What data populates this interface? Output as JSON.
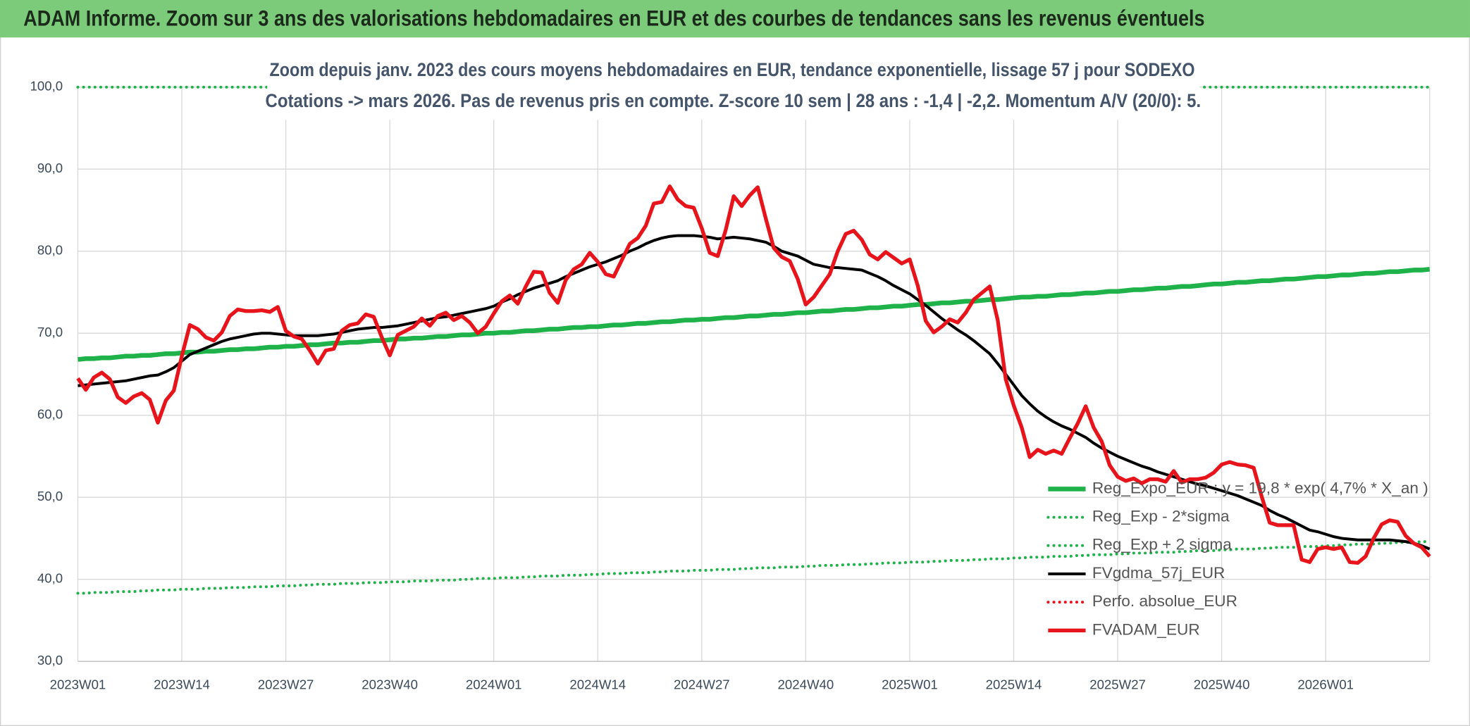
{
  "chart_data": {
    "type": "line",
    "header": "ADAM Informe. Zoom sur 3 ans des valorisations hebdomadaires en EUR et des courbes de tendances sans les revenus éventuels",
    "title": "Zoom depuis janv. 2023 des cours moyens hebdomadaires en EUR, tendance exponentielle, lissage 57 j pour SODEXO",
    "subtitle": "Cotations -> mars 2026. Pas de revenus pris en compte. Z-score 10 sem | 28 ans : -1,4 | -2,2. Momentum A/V (20/0): 5.",
    "grid": true,
    "legend": "lower right",
    "ylim": [
      30,
      100
    ],
    "yticks": [
      {
        "value": 30,
        "label": "30,0"
      },
      {
        "value": 40,
        "label": "40,0"
      },
      {
        "value": 50,
        "label": "50,0"
      },
      {
        "value": 60,
        "label": "60,0"
      },
      {
        "value": 70,
        "label": "70,0"
      },
      {
        "value": 80,
        "label": "80,0"
      },
      {
        "value": 90,
        "label": "90,0"
      },
      {
        "value": 100,
        "label": "100,0"
      }
    ],
    "categories": [
      "2023W01",
      null,
      null,
      null,
      null,
      null,
      null,
      null,
      null,
      null,
      null,
      null,
      null,
      "2023W14",
      null,
      null,
      null,
      null,
      null,
      null,
      null,
      null,
      null,
      null,
      null,
      null,
      "2023W27",
      null,
      null,
      null,
      null,
      null,
      null,
      null,
      null,
      null,
      null,
      null,
      null,
      "2023W40",
      null,
      null,
      null,
      null,
      null,
      null,
      null,
      null,
      null,
      null,
      null,
      null,
      "2024W01",
      null,
      null,
      null,
      null,
      null,
      null,
      null,
      null,
      null,
      null,
      null,
      null,
      "2024W14",
      null,
      null,
      null,
      null,
      null,
      null,
      null,
      null,
      null,
      null,
      null,
      null,
      "2024W27",
      null,
      null,
      null,
      null,
      null,
      null,
      null,
      null,
      null,
      null,
      null,
      null,
      "2024W40",
      null,
      null,
      null,
      null,
      null,
      null,
      null,
      null,
      null,
      null,
      null,
      null,
      "2025W01",
      null,
      null,
      null,
      null,
      null,
      null,
      null,
      null,
      null,
      null,
      null,
      null,
      "2025W14",
      null,
      null,
      null,
      null,
      null,
      null,
      null,
      null,
      null,
      null,
      null,
      null,
      "2025W27",
      null,
      null,
      null,
      null,
      null,
      null,
      null,
      null,
      null,
      null,
      null,
      null,
      "2025W40",
      null,
      null,
      null,
      null,
      null,
      null,
      null,
      null,
      null,
      null,
      null,
      null,
      "2026W01",
      null,
      null,
      null,
      null,
      null,
      null,
      null,
      null,
      null,
      null,
      null,
      null,
      null
    ],
    "series": [
      {
        "name": "Reg_Expo_EUR : y = 19,8 * exp( 4,7% *  X_an )",
        "color": "#1fb24a",
        "style": "solid",
        "width": 5,
        "values": [
          66.8,
          66.9,
          66.9,
          67.0,
          67.0,
          67.1,
          67.2,
          67.2,
          67.3,
          67.3,
          67.4,
          67.5,
          67.5,
          67.6,
          67.7,
          67.7,
          67.8,
          67.8,
          67.9,
          68.0,
          68.0,
          68.1,
          68.1,
          68.2,
          68.3,
          68.3,
          68.4,
          68.4,
          68.5,
          68.6,
          68.6,
          68.7,
          68.8,
          68.8,
          68.9,
          68.9,
          69.0,
          69.1,
          69.1,
          69.2,
          69.3,
          69.3,
          69.4,
          69.4,
          69.5,
          69.6,
          69.6,
          69.7,
          69.8,
          69.8,
          69.9,
          70.0,
          70.0,
          70.1,
          70.1,
          70.2,
          70.3,
          70.3,
          70.4,
          70.5,
          70.5,
          70.6,
          70.7,
          70.7,
          70.8,
          70.8,
          70.9,
          71.0,
          71.0,
          71.1,
          71.2,
          71.2,
          71.3,
          71.4,
          71.4,
          71.5,
          71.6,
          71.6,
          71.7,
          71.7,
          71.8,
          71.9,
          71.9,
          72.0,
          72.1,
          72.1,
          72.2,
          72.3,
          72.3,
          72.4,
          72.5,
          72.5,
          72.6,
          72.7,
          72.7,
          72.8,
          72.9,
          72.9,
          73.0,
          73.1,
          73.1,
          73.2,
          73.3,
          73.3,
          73.4,
          73.5,
          73.5,
          73.6,
          73.7,
          73.7,
          73.8,
          73.9,
          73.9,
          74.0,
          74.1,
          74.1,
          74.2,
          74.3,
          74.4,
          74.4,
          74.5,
          74.5,
          74.6,
          74.7,
          74.7,
          74.8,
          74.9,
          74.9,
          75.0,
          75.1,
          75.1,
          75.2,
          75.3,
          75.3,
          75.4,
          75.5,
          75.5,
          75.6,
          75.7,
          75.7,
          75.8,
          75.9,
          76.0,
          76.0,
          76.1,
          76.2,
          76.2,
          76.3,
          76.4,
          76.4,
          76.5,
          76.6,
          76.6,
          76.7,
          76.8,
          76.9,
          76.9,
          77.0,
          77.1,
          77.1,
          77.2,
          77.3,
          77.3,
          77.4,
          77.5,
          77.5,
          77.6,
          77.7,
          77.7,
          77.8
        ]
      },
      {
        "name": "Reg_Exp - 2*sigma",
        "color": "#1fb24a",
        "style": "dotted",
        "width": 3,
        "values": [
          38.3,
          38.3,
          38.4,
          38.4,
          38.4,
          38.5,
          38.5,
          38.5,
          38.6,
          38.6,
          38.7,
          38.7,
          38.7,
          38.8,
          38.8,
          38.8,
          38.9,
          38.9,
          38.9,
          39.0,
          39.0,
          39.0,
          39.1,
          39.1,
          39.1,
          39.2,
          39.2,
          39.2,
          39.3,
          39.3,
          39.4,
          39.4,
          39.4,
          39.5,
          39.5,
          39.5,
          39.6,
          39.6,
          39.6,
          39.7,
          39.7,
          39.7,
          39.8,
          39.8,
          39.8,
          39.9,
          39.9,
          39.9,
          40.0,
          40.0,
          40.1,
          40.1,
          40.1,
          40.2,
          40.2,
          40.2,
          40.3,
          40.3,
          40.4,
          40.4,
          40.4,
          40.5,
          40.5,
          40.5,
          40.6,
          40.6,
          40.7,
          40.7,
          40.7,
          40.8,
          40.8,
          40.8,
          40.9,
          40.9,
          41.0,
          41.0,
          41.0,
          41.1,
          41.1,
          41.1,
          41.2,
          41.2,
          41.2,
          41.3,
          41.3,
          41.4,
          41.4,
          41.4,
          41.5,
          41.5,
          41.5,
          41.6,
          41.6,
          41.7,
          41.7,
          41.7,
          41.8,
          41.8,
          41.8,
          41.9,
          41.9,
          42.0,
          42.0,
          42.0,
          42.1,
          42.1,
          42.1,
          42.2,
          42.2,
          42.3,
          42.3,
          42.3,
          42.4,
          42.4,
          42.5,
          42.5,
          42.5,
          42.6,
          42.6,
          42.7,
          42.7,
          42.7,
          42.8,
          42.8,
          42.8,
          42.9,
          42.9,
          43.0,
          43.0,
          43.0,
          43.1,
          43.1,
          43.2,
          43.2,
          43.2,
          43.3,
          43.3,
          43.3,
          43.4,
          43.4,
          43.5,
          43.5,
          43.5,
          43.6,
          43.6,
          43.7,
          43.7,
          43.7,
          43.8,
          43.8,
          43.9,
          43.9,
          43.9,
          44.0,
          44.0,
          44.0,
          44.1,
          44.1,
          44.2,
          44.2,
          44.3,
          44.3,
          44.3,
          44.4,
          44.4,
          44.5,
          44.5,
          44.5,
          44.6,
          44.6
        ]
      },
      {
        "name": "Reg_Exp + 2 sigma",
        "color": "#1fb24a",
        "style": "dotted",
        "width": 3,
        "values": [
          100,
          100,
          100,
          100,
          100,
          100,
          100,
          100,
          100,
          100,
          100,
          100,
          100,
          100,
          100,
          100,
          100,
          100,
          100,
          100,
          100,
          100,
          100,
          100,
          100,
          100,
          100,
          100,
          100,
          100,
          100,
          100,
          100,
          100,
          100,
          100,
          100,
          100,
          100,
          100,
          100,
          100,
          100,
          100,
          100,
          100,
          100,
          100,
          100,
          100,
          100,
          100,
          100,
          100,
          100,
          100,
          100,
          100,
          100,
          100,
          100,
          100,
          100,
          100,
          100,
          100,
          100,
          100,
          100,
          100,
          100,
          100,
          100,
          100,
          100,
          100,
          100,
          100,
          100,
          100,
          100,
          100,
          100,
          100,
          100,
          100,
          100,
          100,
          100,
          100,
          100,
          100,
          100,
          100,
          100,
          100,
          100,
          100,
          100,
          100,
          100,
          100,
          100,
          100,
          100,
          100,
          100,
          100,
          100,
          100,
          100,
          100,
          100,
          100,
          100,
          100,
          100,
          100,
          100,
          100,
          100,
          100,
          100,
          100,
          100,
          100,
          100,
          100,
          100,
          100,
          100,
          100,
          100,
          100,
          100,
          100,
          100,
          100,
          100,
          100,
          100,
          100,
          100,
          100,
          100,
          100,
          100,
          100,
          100,
          100,
          100,
          100,
          100,
          100,
          100,
          100,
          100,
          100,
          100,
          100,
          100,
          100,
          100,
          100,
          100,
          100,
          100,
          100,
          100,
          100
        ]
      },
      {
        "name": "FVgdma_57j_EUR",
        "color": "#000000",
        "style": "solid",
        "width": 3,
        "values": [
          63.6,
          63.7,
          63.8,
          63.9,
          64.0,
          64.1,
          64.2,
          64.4,
          64.6,
          64.8,
          64.9,
          65.3,
          65.8,
          66.6,
          67.4,
          67.8,
          68.2,
          68.6,
          69.0,
          69.3,
          69.5,
          69.7,
          69.9,
          70.0,
          70.0,
          69.9,
          69.8,
          69.7,
          69.7,
          69.7,
          69.7,
          69.8,
          69.9,
          70.1,
          70.3,
          70.5,
          70.6,
          70.7,
          70.7,
          70.8,
          70.9,
          71.1,
          71.3,
          71.5,
          71.7,
          71.9,
          72.0,
          72.2,
          72.4,
          72.6,
          72.8,
          73.0,
          73.3,
          73.8,
          74.2,
          74.7,
          75.1,
          75.5,
          75.8,
          76.1,
          76.4,
          76.9,
          77.3,
          77.7,
          78.1,
          78.4,
          78.7,
          79.1,
          79.5,
          80.0,
          80.4,
          80.9,
          81.3,
          81.6,
          81.8,
          81.9,
          81.9,
          81.9,
          81.8,
          81.7,
          81.5,
          81.6,
          81.7,
          81.6,
          81.5,
          81.3,
          81.1,
          80.6,
          80.0,
          79.7,
          79.4,
          78.9,
          78.4,
          78.2,
          78.0,
          78.0,
          77.9,
          77.8,
          77.7,
          77.3,
          76.9,
          76.4,
          75.8,
          75.3,
          74.8,
          74.1,
          73.4,
          72.6,
          71.8,
          71.1,
          70.4,
          69.8,
          69.1,
          68.3,
          67.5,
          66.3,
          65.0,
          63.7,
          62.4,
          61.4,
          60.5,
          59.8,
          59.2,
          58.7,
          58.3,
          57.8,
          57.3,
          56.6,
          56.0,
          55.5,
          55.0,
          54.6,
          54.2,
          53.8,
          53.5,
          53.1,
          52.8,
          52.5,
          52.2,
          51.9,
          51.6,
          51.4,
          51.1,
          50.8,
          50.5,
          50.2,
          49.8,
          49.4,
          49.0,
          48.4,
          47.9,
          47.5,
          47.0,
          46.5,
          46.0,
          45.8,
          45.5,
          45.2,
          45.0,
          44.9,
          44.8,
          44.8,
          44.8,
          44.8,
          44.8,
          44.7,
          44.6,
          44.4,
          44.1,
          43.7
        ]
      },
      {
        "name": "Perfo. absolue_EUR",
        "color": "#e8141b",
        "style": "dotted",
        "width": 3
      },
      {
        "name": "FVADAM_EUR",
        "color": "#e8141b",
        "style": "solid",
        "width": 4,
        "values": [
          64.5,
          63.1,
          64.6,
          65.2,
          64.4,
          62.2,
          61.5,
          62.3,
          62.7,
          61.9,
          59.1,
          61.8,
          63.0,
          67.2,
          71.0,
          70.5,
          69.5,
          69.1,
          70.1,
          72.1,
          72.9,
          72.7,
          72.7,
          72.8,
          72.6,
          73.2,
          70.3,
          69.6,
          69.3,
          67.9,
          66.3,
          67.9,
          68.1,
          70.3,
          71.0,
          71.2,
          72.3,
          72.0,
          69.5,
          67.3,
          69.8,
          70.3,
          70.8,
          71.8,
          70.9,
          72.1,
          72.5,
          71.6,
          72.1,
          71.3,
          70.0,
          70.8,
          72.4,
          73.9,
          74.6,
          73.6,
          75.7,
          77.5,
          77.4,
          74.9,
          73.7,
          76.5,
          77.8,
          78.4,
          79.8,
          78.7,
          77.2,
          76.9,
          78.9,
          80.9,
          81.6,
          83.1,
          85.8,
          86.0,
          87.9,
          86.3,
          85.5,
          85.3,
          82.8,
          79.8,
          79.4,
          82.6,
          86.7,
          85.5,
          86.8,
          87.8,
          84.0,
          80.4,
          79.3,
          78.8,
          76.6,
          73.5,
          74.4,
          75.8,
          77.2,
          80.0,
          82.1,
          82.5,
          81.4,
          79.6,
          79.0,
          79.9,
          79.2,
          78.5,
          79.0,
          75.8,
          71.5,
          70.1,
          70.8,
          71.7,
          71.3,
          72.5,
          74.1,
          74.9,
          75.7,
          71.6,
          64.4,
          61.2,
          58.5,
          54.9,
          55.8,
          55.3,
          55.7,
          55.3,
          57.2,
          59.0,
          61.1,
          58.5,
          56.8,
          53.9,
          52.5,
          52.0,
          52.3,
          51.7,
          52.2,
          52.2,
          51.9,
          53.2,
          51.8,
          52.2,
          52.2,
          52.4,
          53.0,
          54.0,
          54.3,
          54.0,
          53.9,
          53.6,
          50.1,
          46.9,
          46.6,
          46.6,
          46.6,
          42.4,
          42.1,
          43.7,
          43.9,
          43.7,
          43.9,
          42.1,
          42.0,
          42.8,
          45.0,
          46.7,
          47.2,
          47.0,
          45.3,
          44.4,
          43.9,
          42.8
        ]
      }
    ]
  }
}
